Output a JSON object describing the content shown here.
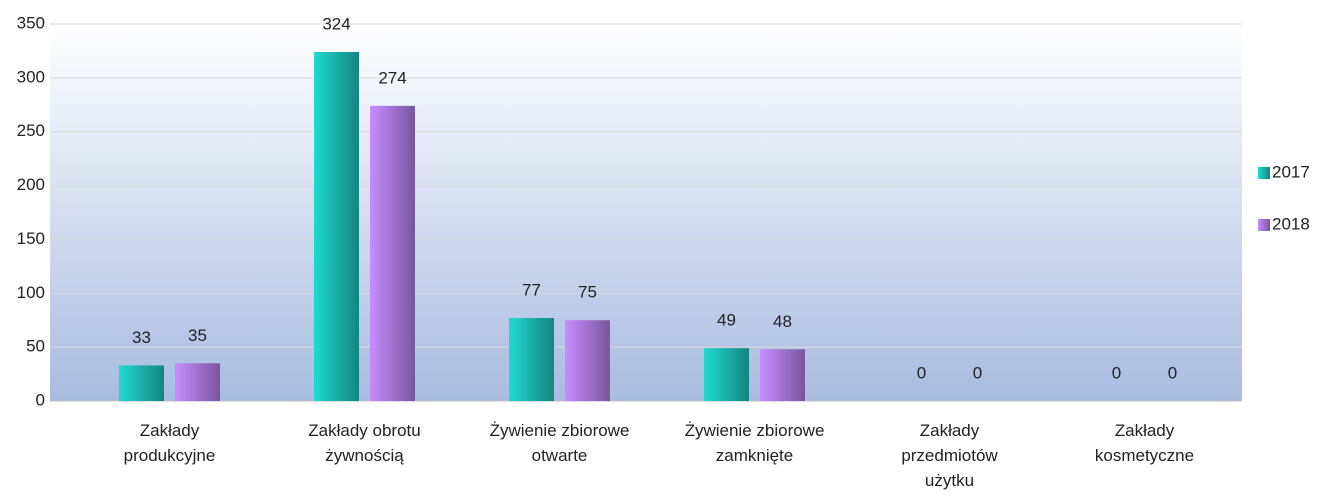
{
  "chart_data": {
    "type": "bar",
    "categories": [
      "Zakłady\nprodukcyjne",
      "Zakłady obrotu\nżywnością",
      "Żywienie zbiorowe\notwarte",
      "Żywienie zbiorowe\nzamknięte",
      "Zakłady\nprzedmiotów\nużytku",
      "Zakłady\nkosmetyczne"
    ],
    "series": [
      {
        "name": "2017",
        "color": "#1cc3bb",
        "values": [
          33,
          324,
          77,
          49,
          0,
          0
        ]
      },
      {
        "name": "2018",
        "color": "#b27ee6",
        "values": [
          35,
          274,
          75,
          48,
          0,
          0
        ]
      }
    ],
    "ylim": [
      0,
      350
    ],
    "yticks": [
      0,
      50,
      100,
      150,
      200,
      250,
      300,
      350
    ],
    "grid": true,
    "legend": "right"
  }
}
